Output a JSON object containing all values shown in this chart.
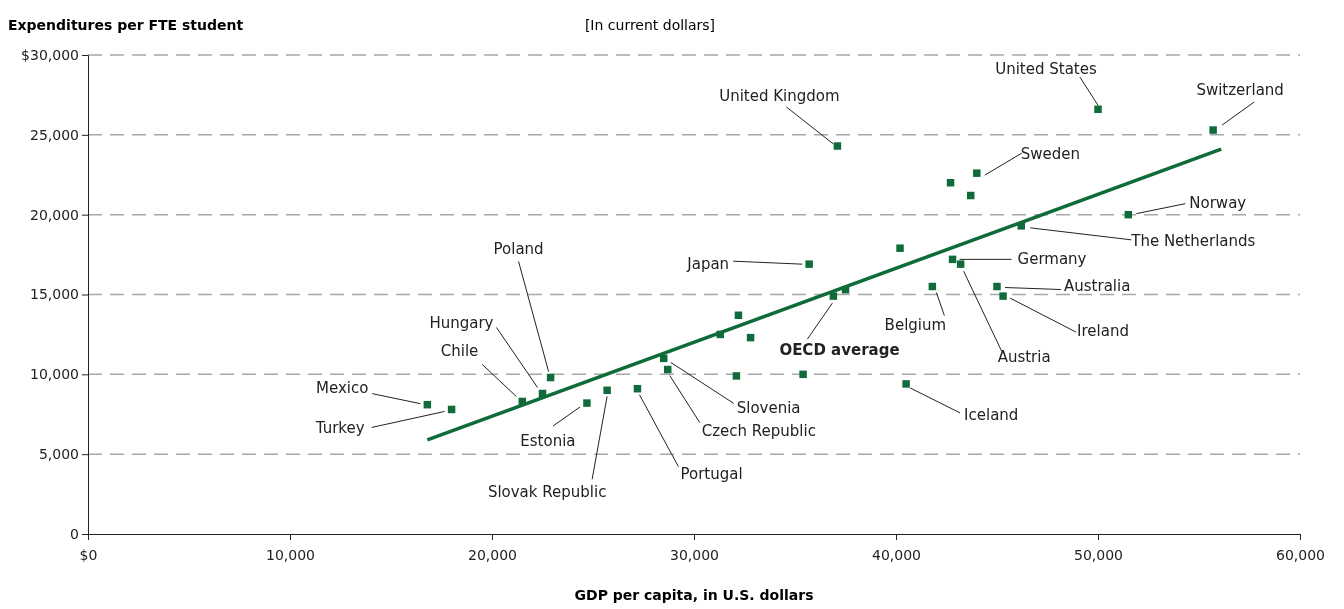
{
  "chart_data": {
    "type": "scatter",
    "ylabel": "Expenditures per FTE student",
    "subtitle": "[In current dollars]",
    "xlabel": "GDP per capita, in U.S. dollars",
    "xlim": [
      0,
      60000
    ],
    "xticks": [
      {
        "value": 0,
        "label": "$0"
      },
      {
        "value": 10000,
        "label": "10,000"
      },
      {
        "value": 20000,
        "label": "20,000"
      },
      {
        "value": 30000,
        "label": "30,000"
      },
      {
        "value": 40000,
        "label": "40,000"
      },
      {
        "value": 50000,
        "label": "50,000"
      },
      {
        "value": 60000,
        "label": "60,000"
      }
    ],
    "ylim": [
      0,
      30000
    ],
    "yticks": [
      0,
      {
        "value": 5000,
        "label": "5,000"
      },
      {
        "value": 10000,
        "label": "10,000"
      },
      {
        "value": 15000,
        "label": "15,000"
      },
      {
        "value": 20000,
        "label": "20,000"
      },
      {
        "value": 25000,
        "label": "25,000"
      },
      {
        "value": 30000,
        "label": "$30,000"
      }
    ],
    "grid": "y",
    "series": [
      {
        "marker": "square",
        "color": "#0f6b3a",
        "x": [
          16800,
          18000,
          21500,
          22500,
          22900,
          24700,
          25700,
          27200,
          28500,
          28700,
          31300,
          32200,
          32800,
          32100,
          35400,
          35700,
          36900,
          37500,
          37100,
          40200,
          40500,
          41800,
          42800,
          43200,
          42700,
          44000,
          43700,
          45000,
          45300,
          46200,
          51500,
          50000,
          55700
        ],
        "values": [
          8100,
          7800,
          8300,
          8800,
          9800,
          8200,
          9000,
          9100,
          11000,
          10300,
          12500,
          13700,
          12300,
          9900,
          10000,
          16900,
          14900,
          15300,
          24300,
          17900,
          9400,
          15500,
          17200,
          16900,
          22000,
          22600,
          21200,
          15500,
          14900,
          19300,
          20000,
          26600,
          25300
        ]
      },
      {
        "type": "line",
        "marker": "none",
        "color": "#0f6b3a",
        "line_style": "solid",
        "x": [
          16800,
          56100
        ],
        "values": [
          5900,
          24100
        ]
      }
    ],
    "annotations": [
      {
        "text": "Mexico",
        "x": 16800,
        "y": 8100
      },
      {
        "text": "Turkey",
        "x": 18000,
        "y": 7800
      },
      {
        "text": "Chile",
        "x": 21500,
        "y": 8300
      },
      {
        "text": "Hungary",
        "x": 22500,
        "y": 8800
      },
      {
        "text": "Poland",
        "x": 22900,
        "y": 9800
      },
      {
        "text": "Estonia",
        "x": 24700,
        "y": 8200
      },
      {
        "text": "Slovak Republic",
        "x": 25700,
        "y": 9000
      },
      {
        "text": "Portugal",
        "x": 27200,
        "y": 9100
      },
      {
        "text": "Slovenia",
        "x": 28500,
        "y": 11000
      },
      {
        "text": "Czech Republic",
        "x": 28700,
        "y": 10300
      },
      {
        "text": "Japan",
        "x": 35700,
        "y": 16900
      },
      {
        "text": "OECD average",
        "x": 36900,
        "y": 14900
      },
      {
        "text": "United Kingdom",
        "x": 37100,
        "y": 24300
      },
      {
        "text": "Iceland",
        "x": 40500,
        "y": 9400
      },
      {
        "text": "Belgium",
        "x": 41800,
        "y": 15500
      },
      {
        "text": "Germany",
        "x": 42800,
        "y": 17200
      },
      {
        "text": "Austria",
        "x": 43200,
        "y": 16900
      },
      {
        "text": "Sweden",
        "x": 44000,
        "y": 22600
      },
      {
        "text": "Australia",
        "x": 45000,
        "y": 15500
      },
      {
        "text": "Ireland",
        "x": 45300,
        "y": 14900
      },
      {
        "text": "The Netherlands",
        "x": 46200,
        "y": 19300
      },
      {
        "text": "Norway",
        "x": 51500,
        "y": 20000
      },
      {
        "text": "United States",
        "x": 50000,
        "y": 26600
      },
      {
        "text": "Switzerland",
        "x": 55700,
        "y": 25300
      }
    ]
  }
}
